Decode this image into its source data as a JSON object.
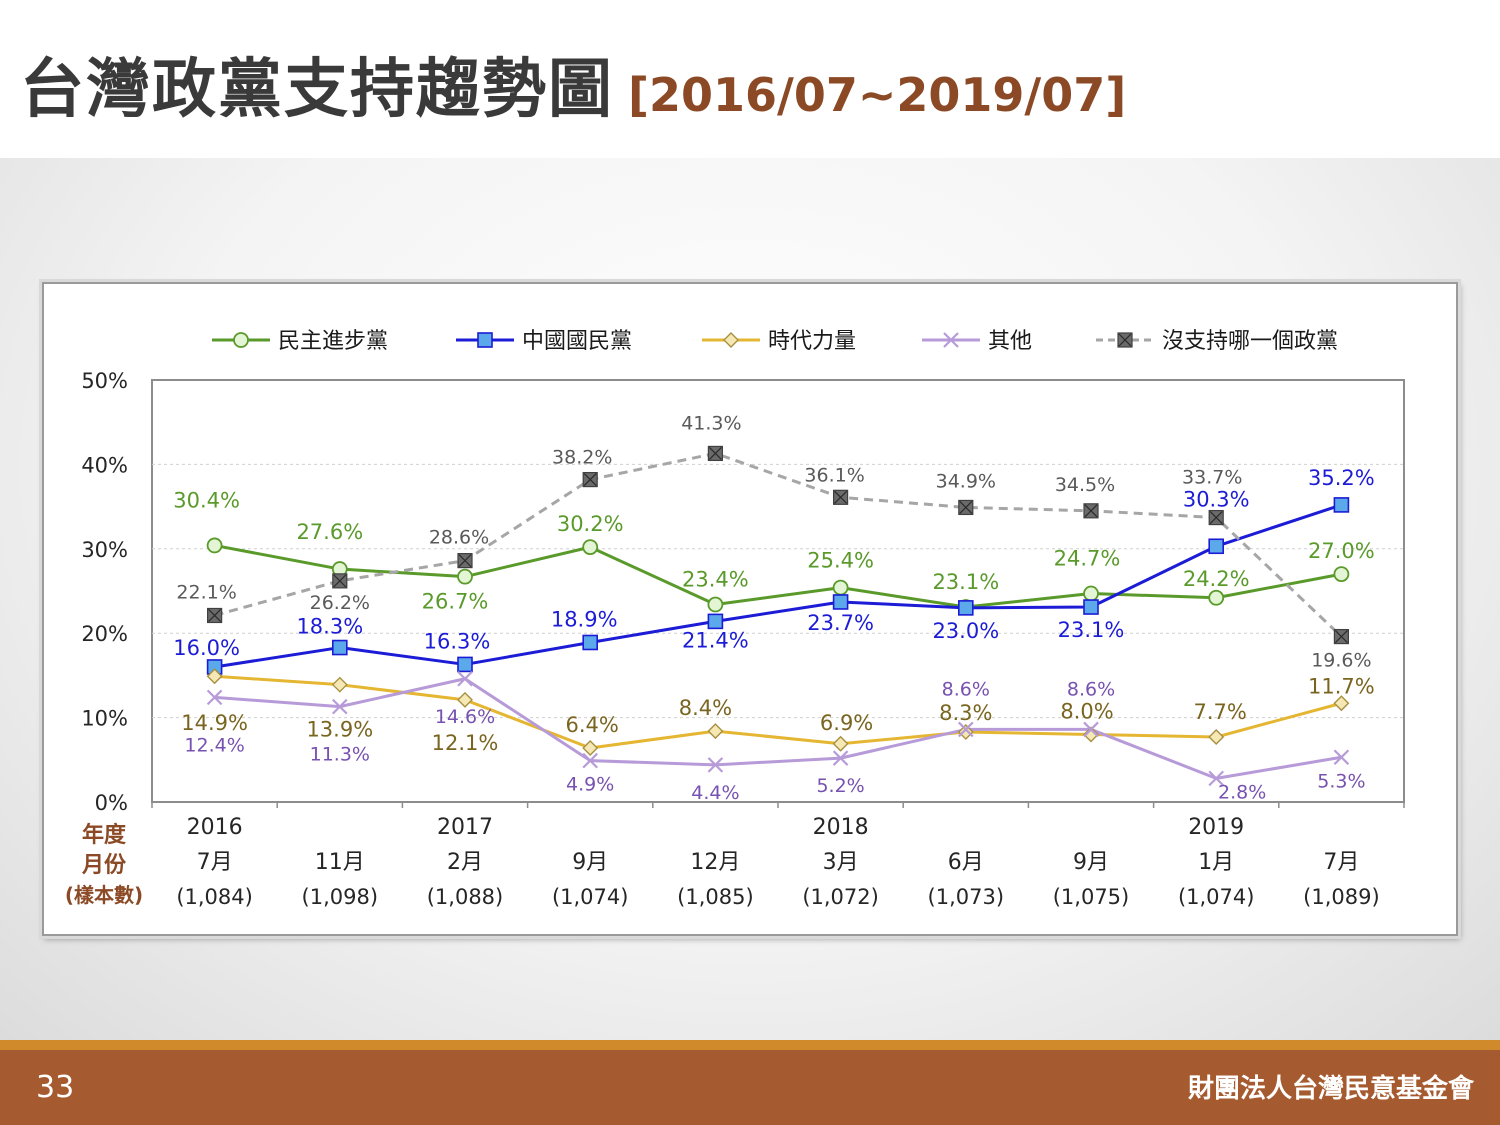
{
  "slide": {
    "title": "台灣政黨支持趨勢圖",
    "subtitle": "[2016/07~2019/07]",
    "page_number": "33",
    "organization": "財團法人台灣民意基金會"
  },
  "chart_data": {
    "type": "line",
    "yticks": [
      "0%",
      "10%",
      "20%",
      "30%",
      "40%",
      "50%"
    ],
    "ylim": [
      0,
      50
    ],
    "grid": true,
    "legend_position": "top",
    "row_headers": [
      "年度",
      "月份",
      "(樣本數)"
    ],
    "years": [
      "2016",
      "",
      "2017",
      "",
      "",
      "2018",
      "",
      "",
      "2019",
      ""
    ],
    "months": [
      "7月",
      "11月",
      "2月",
      "9月",
      "12月",
      "3月",
      "6月",
      "9月",
      "1月",
      "7月"
    ],
    "samples": [
      "(1,084)",
      "(1,098)",
      "(1,088)",
      "(1,074)",
      "(1,085)",
      "(1,072)",
      "(1,073)",
      "(1,075)",
      "(1,074)",
      "(1,089)"
    ],
    "series": [
      {
        "name": "民主進步黨",
        "color": "#5a9a2b",
        "marker": "circle",
        "dash": false,
        "values": [
          30.4,
          27.6,
          26.7,
          30.2,
          23.4,
          25.4,
          23.1,
          24.7,
          24.2,
          27.0
        ],
        "labels": [
          "30.4%",
          "27.6%",
          "26.7%",
          "30.2%",
          "23.4%",
          "25.4%",
          "23.1%",
          "24.7%",
          "24.2%",
          "27.0%"
        ]
      },
      {
        "name": "中國國民黨",
        "color": "#1c1cd6",
        "marker": "square",
        "dash": false,
        "values": [
          16.0,
          18.3,
          16.3,
          18.9,
          21.4,
          23.7,
          23.0,
          23.1,
          30.3,
          35.2
        ],
        "labels": [
          "16.0%",
          "18.3%",
          "16.3%",
          "18.9%",
          "21.4%",
          "23.7%",
          "23.0%",
          "23.1%",
          "30.3%",
          "35.2%"
        ]
      },
      {
        "name": "時代力量",
        "color": "#e5b632",
        "marker": "diamond",
        "dash": false,
        "values": [
          14.9,
          13.9,
          12.1,
          6.4,
          8.4,
          6.9,
          8.3,
          8.0,
          7.7,
          11.7
        ],
        "labels": [
          "14.9%",
          "13.9%",
          "12.1%",
          "6.4%",
          "8.4%",
          "6.9%",
          "8.3%",
          "8.0%",
          "7.7%",
          "11.7%"
        ]
      },
      {
        "name": "其他",
        "color": "#b79ad8",
        "marker": "x",
        "dash": false,
        "values": [
          12.4,
          11.3,
          14.6,
          4.9,
          4.4,
          5.2,
          8.6,
          8.6,
          2.8,
          5.3
        ],
        "labels": [
          "12.4%",
          "11.3%",
          "14.6%",
          "4.9%",
          "4.4%",
          "5.2%",
          "8.6%",
          "8.6%",
          "2.8%",
          "5.3%"
        ]
      },
      {
        "name": "沒支持哪一個政黨",
        "color": "#a6a6a6",
        "marker": "square-x",
        "dash": true,
        "values": [
          22.1,
          26.2,
          28.6,
          38.2,
          41.3,
          36.1,
          34.9,
          34.5,
          33.7,
          19.6
        ],
        "labels": [
          "22.1%",
          "26.2%",
          "28.6%",
          "38.2%",
          "41.3%",
          "36.1%",
          "34.9%",
          "34.5%",
          "33.7%",
          "19.6%"
        ]
      }
    ]
  }
}
